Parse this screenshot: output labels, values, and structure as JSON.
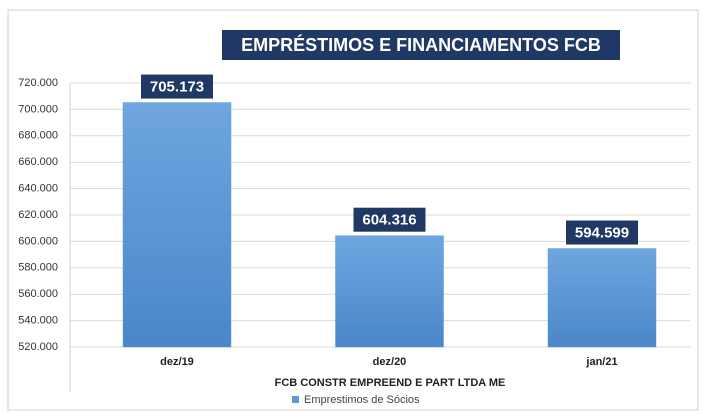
{
  "chart_data": {
    "type": "bar",
    "title": "EMPRÉSTIMOS E FINANCIAMENTOS  FCB",
    "x_label": "FCB CONSTR EMPREEND E PART LTDA ME",
    "categories": [
      "dez/19",
      "dez/20",
      "jan/21"
    ],
    "series": [
      {
        "name": "Emprestimos de Sócios",
        "color": "#5b9bd5",
        "values": [
          705173,
          604316,
          594599
        ],
        "value_labels": [
          "705.173",
          "604.316",
          "594.599"
        ]
      }
    ],
    "ylim": [
      520000,
      720000
    ],
    "yticks": [
      {
        "value": 520000,
        "label": "520.000"
      },
      {
        "value": 540000,
        "label": "540.000"
      },
      {
        "value": 560000,
        "label": "560.000"
      },
      {
        "value": 580000,
        "label": "580.000"
      },
      {
        "value": 600000,
        "label": "600.000"
      },
      {
        "value": 620000,
        "label": "620.000"
      },
      {
        "value": 640000,
        "label": "640.000"
      },
      {
        "value": 660000,
        "label": "660.000"
      },
      {
        "value": 680000,
        "label": "680.000"
      },
      {
        "value": 700000,
        "label": "700.000"
      },
      {
        "value": 720000,
        "label": "720.000"
      }
    ],
    "grid": true,
    "legend": "bottom"
  }
}
